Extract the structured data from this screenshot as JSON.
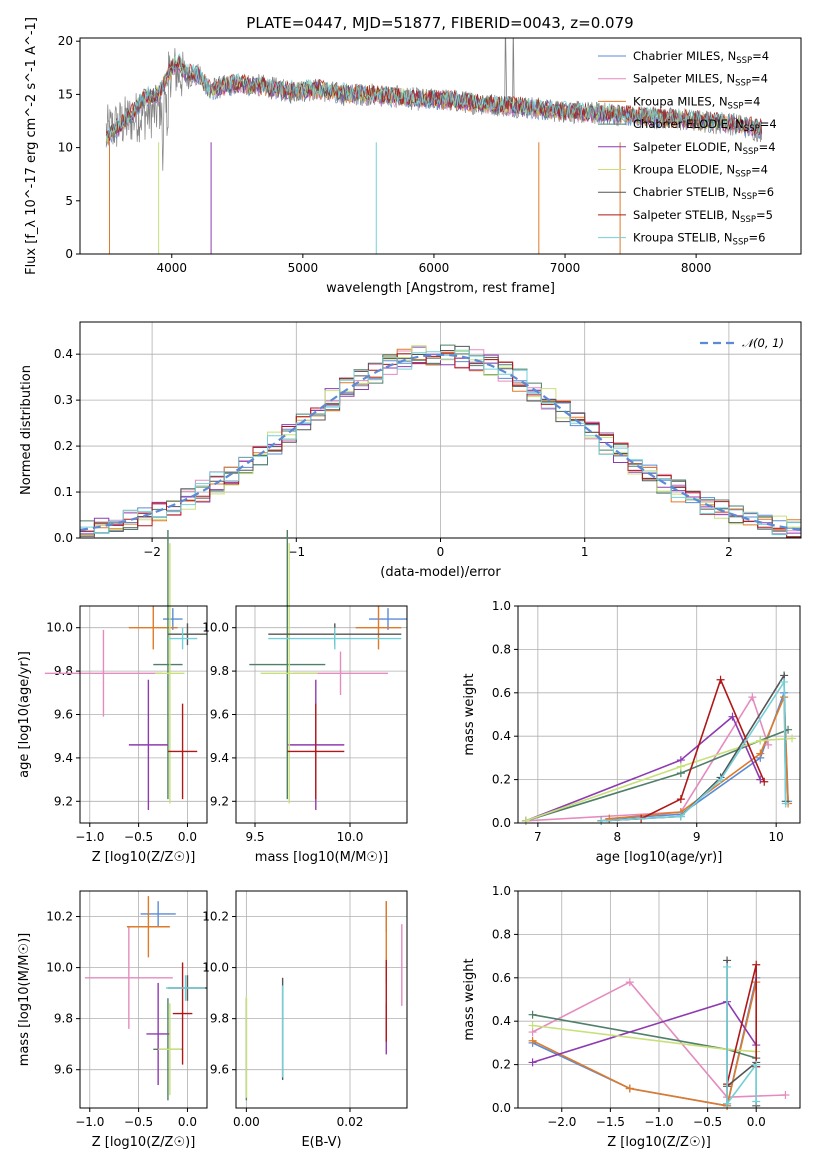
{
  "figure": {
    "title": "PLATE=0447, MJD=51877, FIBERID=0043, z=0.079"
  },
  "colors": {
    "Chabrier MILES": "#5b8bd6",
    "Salpeter MILES": "#e48bbf",
    "Kroupa MILES": "#e07a28",
    "Chabrier ELODIE": "#4f7f68",
    "Salpeter ELODIE": "#8e3bb0",
    "Kroupa ELODIE": "#c8e07a",
    "Chabrier STELIB": "#555555",
    "Salpeter STELIB": "#b01818",
    "Kroupa STELIB": "#72d0d8"
  },
  "chart_data": [
    {
      "id": "spectrum",
      "type": "line",
      "xlabel": "wavelength [Angstrom, rest frame]",
      "ylabel": "Flux [f_λ 10^-17 erg cm^-2 s^-1 A^-1]",
      "xlim": [
        3300,
        8800
      ],
      "ylim": [
        0,
        20.3
      ],
      "xticks": [
        4000,
        5000,
        6000,
        7000,
        8000
      ],
      "yticks": [
        0,
        5,
        10,
        15,
        20
      ],
      "legend_position": "upper-right",
      "legend": [
        {
          "name": "Chabrier MILES",
          "nssp": "4"
        },
        {
          "name": "Salpeter MILES",
          "nssp": "4"
        },
        {
          "name": "Kroupa MILES",
          "nssp": "4"
        },
        {
          "name": "Chabrier ELODIE",
          "nssp": "4"
        },
        {
          "name": "Salpeter ELODIE",
          "nssp": "4"
        },
        {
          "name": "Kroupa ELODIE",
          "nssp": "4"
        },
        {
          "name": "Chabrier STELIB",
          "nssp": "6"
        },
        {
          "name": "Salpeter STELIB",
          "nssp": "5"
        },
        {
          "name": "Kroupa STELIB",
          "nssp": "6"
        }
      ],
      "data_spectrum": {
        "x": [
          3500,
          3700,
          3900,
          4000,
          4100,
          4200,
          4300,
          4500,
          4700,
          4900,
          5100,
          5300,
          5500,
          5700,
          5900,
          6100,
          6300,
          6500,
          6700,
          6900,
          7100,
          7300,
          7500,
          7700,
          7900,
          8100,
          8300,
          8500
        ],
        "y": [
          11.5,
          12.8,
          13.5,
          17.5,
          16.5,
          16.8,
          15.5,
          16.0,
          15.8,
          15.2,
          15.5,
          15.0,
          15.0,
          14.8,
          14.5,
          14.5,
          14.2,
          14.0,
          13.8,
          13.5,
          13.3,
          13.2,
          13.0,
          12.8,
          12.6,
          12.4,
          12.2,
          11.5
        ]
      },
      "model_spectrum": {
        "x": [
          3500,
          3600,
          3700,
          3800,
          3900,
          4000,
          4050,
          4100,
          4200,
          4300,
          4400,
          4500,
          4700,
          4900,
          5100,
          5300,
          5500,
          5700,
          5900,
          6100,
          6300,
          6500,
          6700,
          6900,
          7100,
          7300,
          7500,
          7700,
          7900,
          8100,
          8300,
          8500
        ],
        "y": [
          11.0,
          12.0,
          13.3,
          14.8,
          15.0,
          17.5,
          18.0,
          17.0,
          16.8,
          15.3,
          15.8,
          16.0,
          15.7,
          15.3,
          15.5,
          15.1,
          15.0,
          14.8,
          14.6,
          14.5,
          14.2,
          14.0,
          13.8,
          13.5,
          13.3,
          13.2,
          13.0,
          12.8,
          12.7,
          12.5,
          12.2,
          11.8
        ]
      },
      "absorption_lines": [
        3900,
        4300,
        5560,
        6800,
        7420,
        3525
      ]
    },
    {
      "id": "residuals",
      "type": "line",
      "xlabel": "(data-model)/error",
      "ylabel": "Normed distribution",
      "xlim": [
        -2.5,
        2.5
      ],
      "ylim": [
        0,
        0.47
      ],
      "xticks": [
        -2,
        -1,
        0,
        1,
        2
      ],
      "yticks": [
        0.0,
        0.1,
        0.2,
        0.3,
        0.4
      ],
      "legend_position": "upper-right",
      "legend": [
        "𝒩(0, 1)"
      ],
      "curve": "standard normal density"
    },
    {
      "id": "age-vs-Z",
      "type": "scatter",
      "xlabel": "Z [log10(Z/Z☉)]",
      "ylabel": "age  [log10(age/yr)]",
      "xlim": [
        -1.1,
        0.2
      ],
      "ylim": [
        9.1,
        10.1
      ],
      "xticks": [
        -1.0,
        -0.5,
        0.0
      ],
      "yticks": [
        9.2,
        9.4,
        9.6,
        9.8,
        10.0
      ],
      "points": [
        {
          "model": "Chabrier MILES",
          "x": -0.15,
          "xerr": 0.1,
          "y": 10.04,
          "yerr": 0.05
        },
        {
          "model": "Salpeter MILES",
          "x": -0.86,
          "xerr": 0.6,
          "y": 9.79,
          "yerr": 0.2
        },
        {
          "model": "Kroupa MILES",
          "x": -0.35,
          "xerr": 0.25,
          "y": 10.0,
          "yerr": 0.1
        },
        {
          "model": "Chabrier ELODIE",
          "x": -0.2,
          "xerr": 0.15,
          "y": 9.83,
          "yerr": 0.62
        },
        {
          "model": "Salpeter ELODIE",
          "x": -0.4,
          "xerr": 0.2,
          "y": 9.46,
          "yerr": 0.3
        },
        {
          "model": "Kroupa ELODIE",
          "x": -0.18,
          "xerr": 0.15,
          "y": 9.79,
          "yerr": 0.6
        },
        {
          "model": "Chabrier STELIB",
          "x": 0.0,
          "xerr": 0.2,
          "y": 9.97,
          "yerr": 0.05
        },
        {
          "model": "Salpeter STELIB",
          "x": -0.05,
          "xerr": 0.15,
          "y": 9.43,
          "yerr": 0.22
        },
        {
          "model": "Kroupa STELIB",
          "x": -0.05,
          "xerr": 0.15,
          "y": 9.95,
          "yerr": 0.05
        }
      ]
    },
    {
      "id": "age-vs-mass",
      "type": "scatter",
      "xlabel": "mass [log10(M/M☉)]",
      "ylabel": "",
      "xlim": [
        9.4,
        10.3
      ],
      "ylim": [
        9.1,
        10.1
      ],
      "xticks": [
        9.5,
        10.0
      ],
      "yticks": [
        9.2,
        9.4,
        9.6,
        9.8,
        10.0
      ],
      "points": [
        {
          "model": "Chabrier MILES",
          "x": 10.2,
          "xerr": 0.1,
          "y": 10.04,
          "yerr": 0.05
        },
        {
          "model": "Salpeter MILES",
          "x": 9.95,
          "xerr": 0.25,
          "y": 9.79,
          "yerr": 0.1
        },
        {
          "model": "Kroupa MILES",
          "x": 10.15,
          "xerr": 0.12,
          "y": 10.0,
          "yerr": 0.1
        },
        {
          "model": "Chabrier ELODIE",
          "x": 9.67,
          "xerr": 0.2,
          "y": 9.83,
          "yerr": 0.62
        },
        {
          "model": "Salpeter ELODIE",
          "x": 9.82,
          "xerr": 0.15,
          "y": 9.46,
          "yerr": 0.3
        },
        {
          "model": "Kroupa ELODIE",
          "x": 9.68,
          "xerr": 0.15,
          "y": 9.79,
          "yerr": 0.6
        },
        {
          "model": "Chabrier STELIB",
          "x": 9.92,
          "xerr": 0.35,
          "y": 9.97,
          "yerr": 0.05
        },
        {
          "model": "Salpeter STELIB",
          "x": 9.82,
          "xerr": 0.15,
          "y": 9.43,
          "yerr": 0.22
        },
        {
          "model": "Kroupa STELIB",
          "x": 9.92,
          "xerr": 0.35,
          "y": 9.95,
          "yerr": 0.05
        }
      ]
    },
    {
      "id": "weight-vs-age",
      "type": "line",
      "xlabel": "age  [log10(age/yr)]",
      "ylabel": "mass weight",
      "xlim": [
        6.75,
        10.3
      ],
      "ylim": [
        0,
        1.0
      ],
      "xticks": [
        7,
        8,
        9,
        10
      ],
      "yticks": [
        0.0,
        0.2,
        0.4,
        0.6,
        0.8,
        1.0
      ],
      "series": [
        {
          "name": "Chabrier MILES",
          "x": [
            7.9,
            8.8,
            9.8,
            10.1,
            10.15
          ],
          "y": [
            0.02,
            0.04,
            0.3,
            0.6,
            0.1
          ]
        },
        {
          "name": "Salpeter MILES",
          "x": [
            6.85,
            8.8,
            9.7,
            9.9
          ],
          "y": [
            0.01,
            0.05,
            0.58,
            0.36
          ]
        },
        {
          "name": "Kroupa MILES",
          "x": [
            7.9,
            8.8,
            9.8,
            10.1,
            10.15
          ],
          "y": [
            0.02,
            0.05,
            0.32,
            0.58,
            0.09
          ]
        },
        {
          "name": "Chabrier ELODIE",
          "x": [
            6.85,
            8.8,
            9.8,
            10.15
          ],
          "y": [
            0.01,
            0.23,
            0.38,
            0.43
          ]
        },
        {
          "name": "Salpeter ELODIE",
          "x": [
            6.85,
            8.8,
            9.45,
            9.8
          ],
          "y": [
            0.01,
            0.29,
            0.49,
            0.2
          ]
        },
        {
          "name": "Kroupa ELODIE",
          "x": [
            6.85,
            8.8,
            9.8,
            10.2
          ],
          "y": [
            0.01,
            0.26,
            0.38,
            0.39
          ]
        },
        {
          "name": "Chabrier STELIB",
          "x": [
            7.8,
            8.8,
            9.3,
            10.1,
            10.12
          ],
          "y": [
            0.01,
            0.03,
            0.21,
            0.68,
            0.1
          ]
        },
        {
          "name": "Salpeter STELIB",
          "x": [
            7.8,
            8.3,
            8.8,
            9.3,
            9.85
          ],
          "y": [
            0.01,
            0.02,
            0.11,
            0.66,
            0.19
          ]
        },
        {
          "name": "Kroupa STELIB",
          "x": [
            7.8,
            8.8,
            9.3,
            10.1,
            10.12
          ],
          "y": [
            0.01,
            0.03,
            0.2,
            0.65,
            0.09
          ]
        }
      ]
    },
    {
      "id": "mass-vs-Z",
      "type": "scatter",
      "xlabel": "Z [log10(Z/Z☉)]",
      "ylabel": "mass [log10(M/M☉)]",
      "xlim": [
        -1.1,
        0.2
      ],
      "ylim": [
        9.45,
        10.3
      ],
      "xticks": [
        -1.0,
        -0.5,
        0.0
      ],
      "yticks": [
        9.6,
        9.8,
        10.0,
        10.2
      ],
      "points": [
        {
          "model": "Chabrier MILES",
          "x": -0.3,
          "xerr": 0.18,
          "y": 10.21,
          "yerr": 0.05
        },
        {
          "model": "Salpeter MILES",
          "x": -0.6,
          "xerr": 0.45,
          "y": 9.96,
          "yerr": 0.2
        },
        {
          "model": "Kroupa MILES",
          "x": -0.4,
          "xerr": 0.22,
          "y": 10.16,
          "yerr": 0.12
        },
        {
          "model": "Chabrier ELODIE",
          "x": -0.2,
          "xerr": 0.15,
          "y": 9.68,
          "yerr": 0.2
        },
        {
          "model": "Salpeter ELODIE",
          "x": -0.3,
          "xerr": 0.12,
          "y": 9.74,
          "yerr": 0.2
        },
        {
          "model": "Kroupa ELODIE",
          "x": -0.18,
          "xerr": 0.12,
          "y": 9.68,
          "yerr": 0.18
        },
        {
          "model": "Chabrier STELIB",
          "x": 0.0,
          "xerr": 0.2,
          "y": 9.92,
          "yerr": 0.05
        },
        {
          "model": "Salpeter STELIB",
          "x": -0.05,
          "xerr": 0.1,
          "y": 9.82,
          "yerr": 0.2
        },
        {
          "model": "Kroupa STELIB",
          "x": -0.02,
          "xerr": 0.2,
          "y": 9.92,
          "yerr": 0.05
        }
      ]
    },
    {
      "id": "mass-vs-EBV",
      "type": "scatter",
      "xlabel": "E(B-V)",
      "ylabel": "",
      "xlim": [
        -0.002,
        0.031
      ],
      "ylim": [
        9.45,
        10.3
      ],
      "xticks": [
        0.0,
        0.02
      ],
      "yticks": [
        9.6,
        9.8,
        10.0,
        10.2
      ],
      "points": [
        {
          "model": "Chabrier MILES",
          "x": 0.027,
          "y": 10.2,
          "yerr": 0.06
        },
        {
          "model": "Salpeter MILES",
          "x": 0.03,
          "y": 10.01,
          "yerr": 0.16
        },
        {
          "model": "Kroupa MILES",
          "x": 0.027,
          "y": 10.1,
          "yerr": 0.16
        },
        {
          "model": "Chabrier ELODIE",
          "x": 0.0,
          "y": 9.68,
          "yerr": 0.2
        },
        {
          "model": "Salpeter ELODIE",
          "x": 0.027,
          "y": 9.76,
          "yerr": 0.1
        },
        {
          "model": "Kroupa ELODIE",
          "x": 0.0,
          "y": 9.69,
          "yerr": 0.2
        },
        {
          "model": "Chabrier STELIB",
          "x": 0.007,
          "y": 9.76,
          "yerr": 0.2
        },
        {
          "model": "Salpeter STELIB",
          "x": 0.027,
          "y": 9.87,
          "yerr": 0.16
        },
        {
          "model": "Kroupa STELIB",
          "x": 0.007,
          "y": 9.75,
          "yerr": 0.18
        }
      ]
    },
    {
      "id": "weight-vs-Z",
      "type": "line",
      "xlabel": "Z [log10(Z/Z☉)]",
      "ylabel": "mass weight",
      "xlim": [
        -2.45,
        0.45
      ],
      "ylim": [
        0,
        1.0
      ],
      "xticks": [
        -2.0,
        -1.5,
        -1.0,
        -0.5,
        0.0
      ],
      "yticks": [
        0.0,
        0.2,
        0.4,
        0.6,
        0.8,
        1.0
      ],
      "series": [
        {
          "name": "Chabrier MILES",
          "x": [
            -2.3,
            -1.3,
            -0.3,
            0.0
          ],
          "y": [
            0.3,
            0.09,
            0.01,
            0.6
          ]
        },
        {
          "name": "Salpeter MILES",
          "x": [
            -2.3,
            -1.3,
            -0.3,
            0.3
          ],
          "y": [
            0.35,
            0.58,
            0.05,
            0.06
          ]
        },
        {
          "name": "Kroupa MILES",
          "x": [
            -2.3,
            -1.3,
            -0.3,
            0.0
          ],
          "y": [
            0.31,
            0.09,
            0.01,
            0.58
          ]
        },
        {
          "name": "Chabrier ELODIE",
          "x": [
            -2.3,
            -0.3,
            0.0
          ],
          "y": [
            0.43,
            0.27,
            0.23
          ]
        },
        {
          "name": "Salpeter ELODIE",
          "x": [
            -2.3,
            -0.3,
            0.0
          ],
          "y": [
            0.21,
            0.49,
            0.29
          ]
        },
        {
          "name": "Kroupa ELODIE",
          "x": [
            -2.3,
            -0.3,
            0.0
          ],
          "y": [
            0.38,
            0.27,
            0.26
          ]
        },
        {
          "name": "Chabrier STELIB",
          "x": [
            -0.3,
            -0.3,
            0.0,
            0.0
          ],
          "y": [
            0.68,
            0.1,
            0.21,
            0.01
          ]
        },
        {
          "name": "Salpeter STELIB",
          "x": [
            -0.3,
            -0.3,
            0.0,
            0.0
          ],
          "y": [
            0.02,
            0.11,
            0.66,
            0.19
          ]
        },
        {
          "name": "Kroupa STELIB",
          "x": [
            -0.3,
            -0.3,
            0.0,
            0.0
          ],
          "y": [
            0.65,
            0.02,
            0.2,
            0.03
          ]
        }
      ]
    }
  ]
}
